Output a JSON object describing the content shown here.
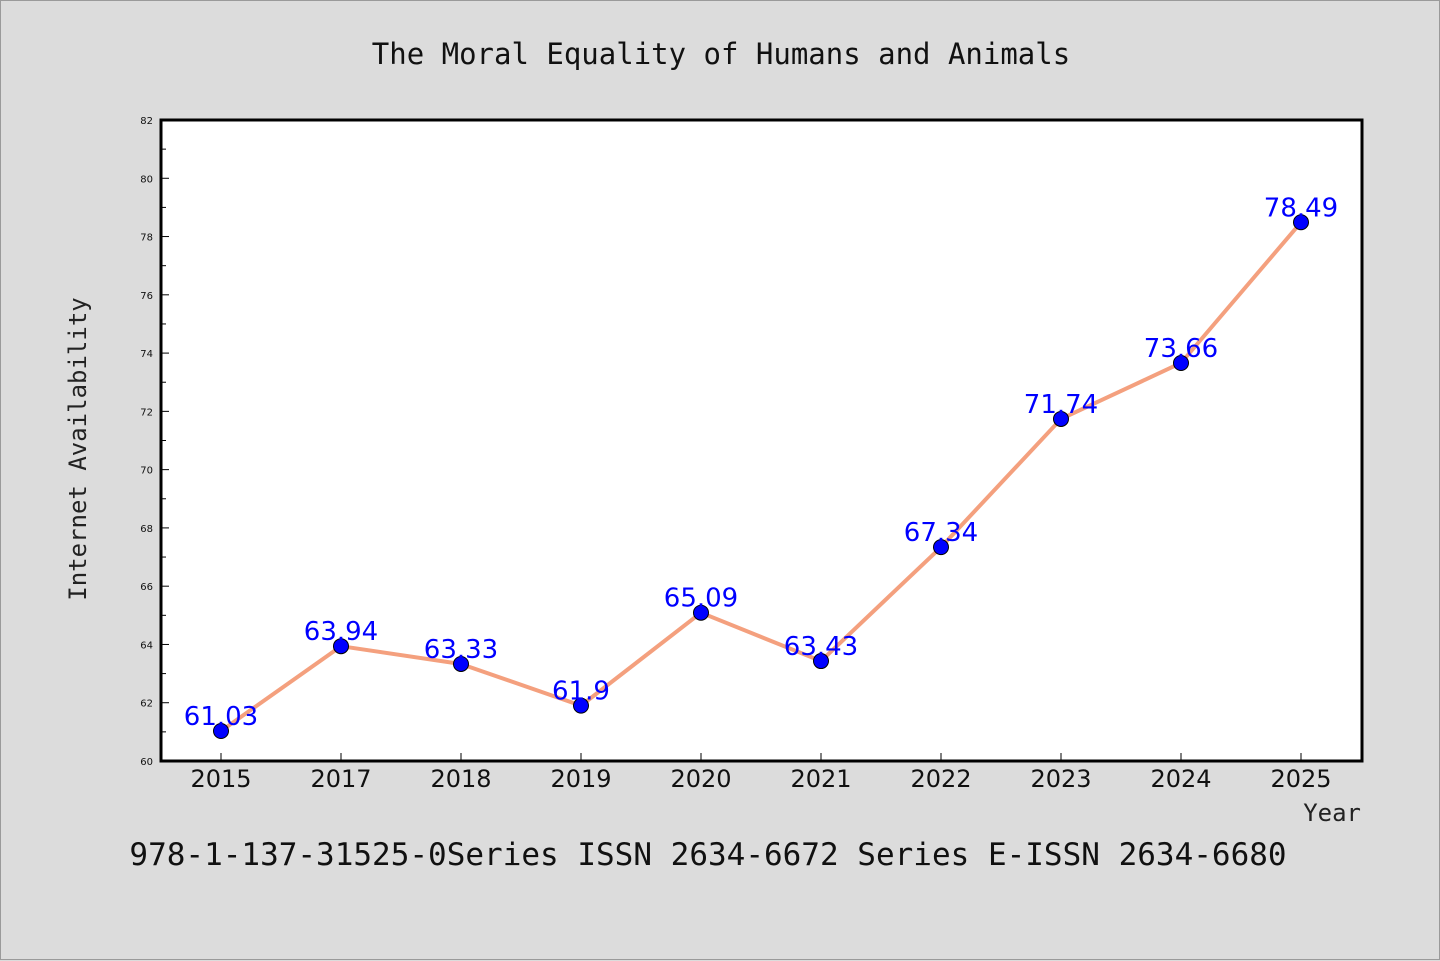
{
  "chart_data": {
    "type": "line",
    "title": "The Moral Equality of Humans and Animals",
    "xlabel": "Year",
    "ylabel": "Internet Availability",
    "categories": [
      "2015",
      "2017",
      "2018",
      "2019",
      "2020",
      "2021",
      "2022",
      "2023",
      "2024",
      "2025"
    ],
    "series": [
      {
        "values": [
          61.03,
          63.94,
          63.33,
          61.9,
          65.09,
          63.43,
          67.34,
          71.74,
          73.66,
          78.49
        ],
        "labels": [
          "61.03",
          "63.94",
          "63.33",
          "61.9",
          "65.09",
          "63.43",
          "67.34",
          "71.74",
          "73.66",
          "78.49"
        ]
      }
    ],
    "ylim": [
      60,
      82
    ],
    "yticks": [
      60,
      62,
      64,
      66,
      68,
      70,
      72,
      74,
      76,
      78,
      80,
      82
    ],
    "grid": false,
    "colors": {
      "line": "#f4a07e",
      "marker": "#0000ff",
      "label": "#0000ff",
      "plot_background": "#ffffff",
      "page_background": "#dcdcdc"
    }
  },
  "footer": "978-1-137-31525-0Series ISSN 2634-6672 Series E-ISSN 2634-6680"
}
